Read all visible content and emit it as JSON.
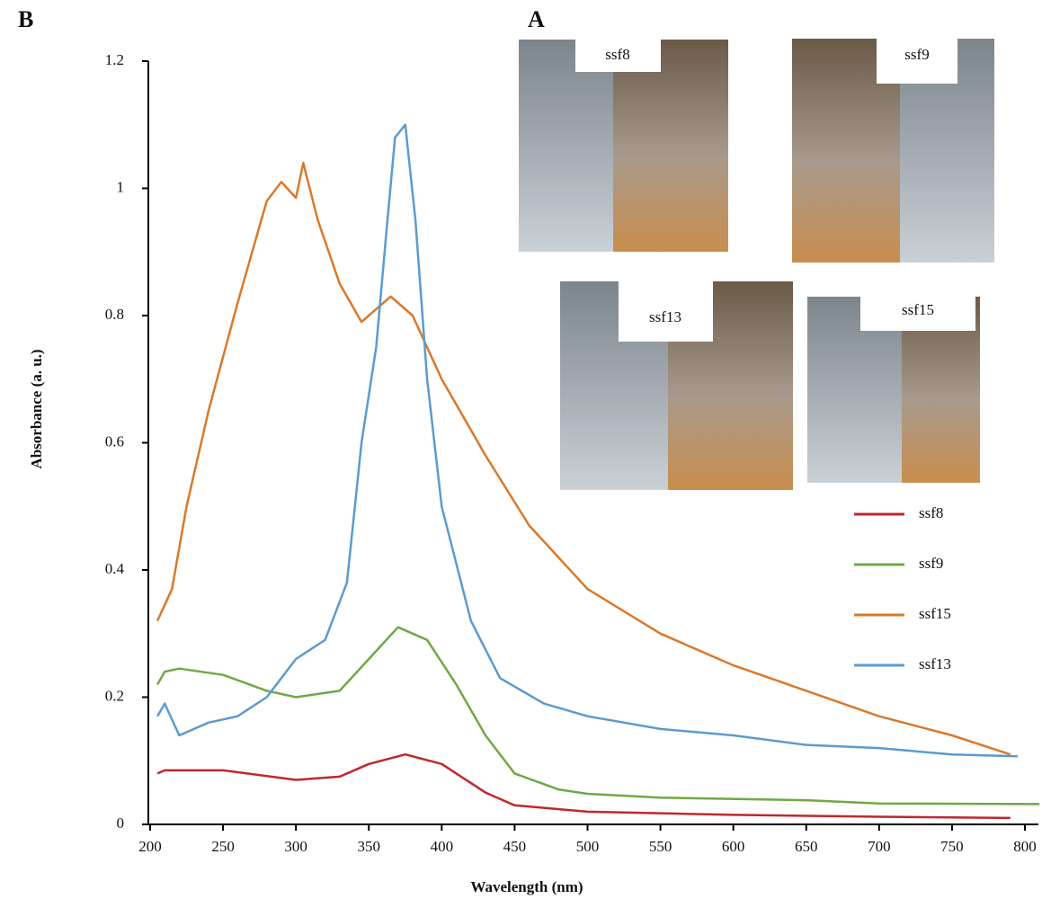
{
  "panel_labels": [
    "B",
    "A"
  ],
  "photos": [
    {
      "label": "ssf8"
    },
    {
      "label": "ssf9"
    },
    {
      "label": "ssf13"
    },
    {
      "label": "ssf15"
    }
  ],
  "chart_data": {
    "type": "line",
    "x_label": "Wavelength (nm)",
    "y_label": "Absorbance (a. u.)",
    "xlim": [
      200,
      800
    ],
    "xticks": [
      200,
      250,
      300,
      350,
      400,
      450,
      500,
      550,
      600,
      650,
      700,
      750,
      800
    ],
    "ylim": [
      0,
      1.2
    ],
    "yticks": [
      0,
      0.2,
      0.4,
      0.6,
      0.8,
      1,
      1.2
    ],
    "grid": false,
    "legend": "right",
    "series": [
      {
        "name": "ssf8",
        "color": "#c0272d",
        "x": [
          205,
          210,
          250,
          300,
          330,
          350,
          375,
          400,
          430,
          450,
          500,
          600,
          700,
          790
        ],
        "values": [
          0.08,
          0.085,
          0.085,
          0.07,
          0.075,
          0.095,
          0.11,
          0.095,
          0.05,
          0.03,
          0.02,
          0.015,
          0.012,
          0.01
        ]
      },
      {
        "name": "ssf9",
        "color": "#70a845",
        "x": [
          205,
          210,
          220,
          250,
          280,
          300,
          330,
          350,
          370,
          390,
          410,
          430,
          450,
          480,
          500,
          550,
          650,
          700,
          810
        ],
        "values": [
          0.22,
          0.24,
          0.245,
          0.235,
          0.21,
          0.2,
          0.21,
          0.26,
          0.31,
          0.29,
          0.22,
          0.14,
          0.08,
          0.055,
          0.048,
          0.042,
          0.038,
          0.033,
          0.032
        ]
      },
      {
        "name": "ssf15",
        "color": "#d9792b",
        "x": [
          205,
          215,
          225,
          240,
          260,
          280,
          290,
          300,
          305,
          315,
          330,
          345,
          365,
          380,
          400,
          430,
          460,
          500,
          550,
          600,
          650,
          700,
          750,
          790
        ],
        "values": [
          0.32,
          0.37,
          0.5,
          0.65,
          0.82,
          0.98,
          1.01,
          0.985,
          1.04,
          0.95,
          0.85,
          0.79,
          0.83,
          0.8,
          0.7,
          0.58,
          0.47,
          0.37,
          0.3,
          0.25,
          0.21,
          0.17,
          0.14,
          0.11
        ]
      },
      {
        "name": "ssf13",
        "color": "#5b9bd0",
        "x": [
          205,
          210,
          220,
          240,
          260,
          280,
          300,
          320,
          335,
          345,
          355,
          362,
          368,
          375,
          382,
          390,
          400,
          420,
          440,
          470,
          500,
          550,
          600,
          650,
          700,
          750,
          795
        ],
        "values": [
          0.17,
          0.19,
          0.14,
          0.16,
          0.17,
          0.2,
          0.26,
          0.29,
          0.38,
          0.6,
          0.75,
          0.93,
          1.08,
          1.1,
          0.95,
          0.7,
          0.5,
          0.32,
          0.23,
          0.19,
          0.17,
          0.15,
          0.14,
          0.125,
          0.12,
          0.11,
          0.107
        ]
      }
    ]
  }
}
